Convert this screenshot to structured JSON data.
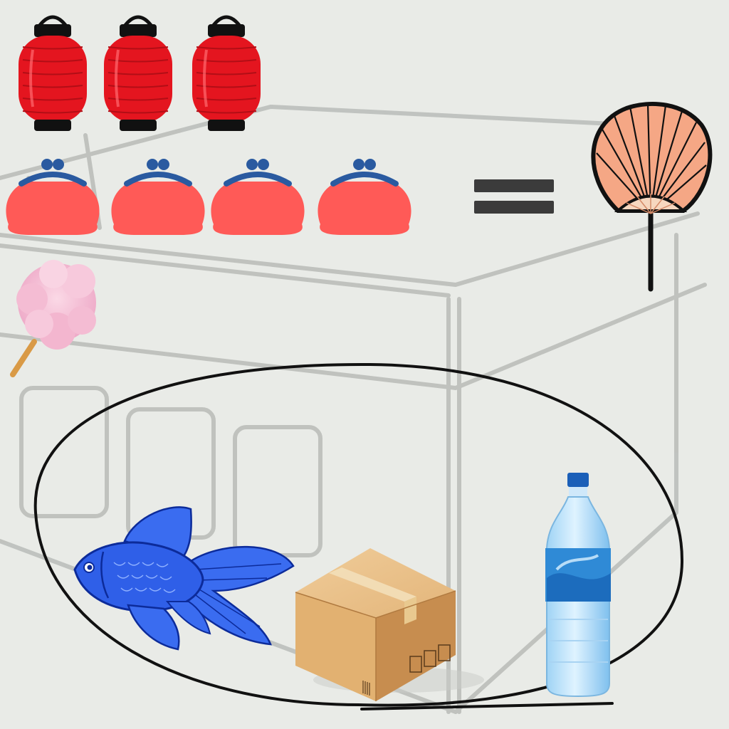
{
  "scene": {
    "description_hidden": "",
    "background_color": "#e9ebe7",
    "sketch_line_color": "#b9bcb8"
  },
  "equation": {
    "left_side": {
      "lanterns": {
        "count": 3,
        "icon": "paper-lantern-icon",
        "color": "#e4151f"
      },
      "coin_purses": {
        "count": 4,
        "icon": "coin-purse-icon",
        "color": "#ff5a57",
        "clasp_color": "#2a5aa0"
      },
      "cotton_candy": {
        "count": 1,
        "icon": "cotton-candy-icon",
        "color": "#f6c2d8"
      }
    },
    "operator_icon": "equals-sign-icon",
    "right_side": {
      "count": 1,
      "icon": "paper-fan-icon",
      "color": "#f5a785"
    }
  },
  "answer_choices": {
    "outline_icon": "ellipse-outline",
    "items": [
      {
        "icon": "goldfish-icon",
        "color": "#1f55e0"
      },
      {
        "icon": "cardboard-box-icon",
        "color": "#d9a86a"
      },
      {
        "icon": "water-bottle-icon",
        "color": "#4aa4e4"
      }
    ]
  }
}
